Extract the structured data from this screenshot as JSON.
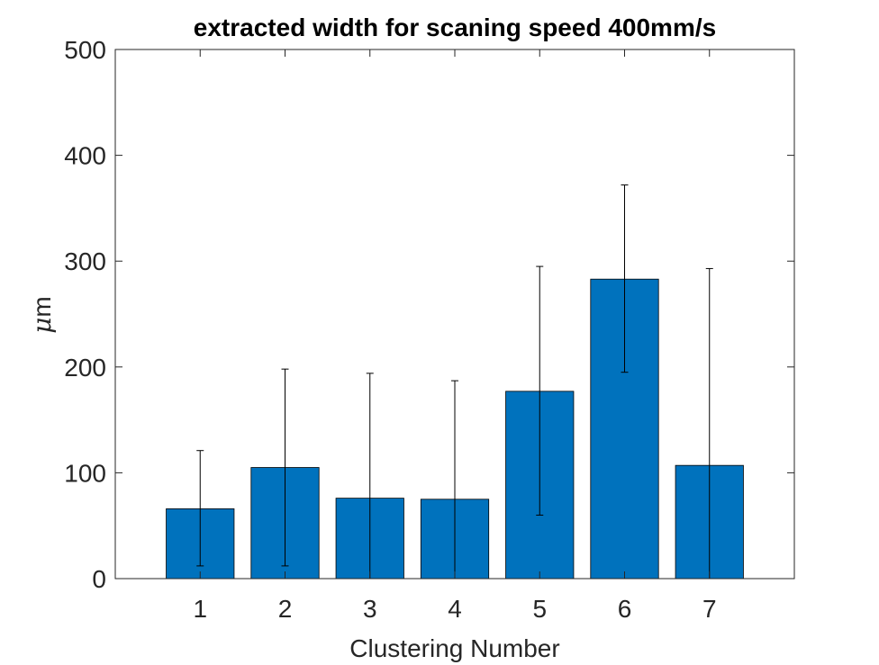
{
  "chart_data": {
    "type": "bar",
    "title": "extracted width for scaning speed 400mm/s",
    "xlabel": "Clustering Number",
    "ylabel": "μm",
    "ylabel_parts": {
      "greek": "μ",
      "unit": "m"
    },
    "categories": [
      "1",
      "2",
      "3",
      "4",
      "5",
      "6",
      "7"
    ],
    "x_tick_labels": [
      "1",
      "2",
      "3",
      "4",
      "5",
      "6",
      "7"
    ],
    "xlim": [
      0,
      8
    ],
    "ylim": [
      0,
      500
    ],
    "y_ticks": [
      0,
      100,
      200,
      300,
      400,
      500
    ],
    "y_tick_labels": [
      "0",
      "100",
      "200",
      "300",
      "400",
      "500"
    ],
    "values": [
      66,
      105,
      76,
      75,
      177,
      283,
      107
    ],
    "error_lower": [
      12,
      12,
      0,
      0,
      60,
      195,
      0
    ],
    "error_upper": [
      121,
      198,
      194,
      187,
      295,
      372,
      293
    ],
    "bar_color": "#0072BD",
    "error_bar_color": "#000000",
    "grid": false,
    "legend": "none"
  }
}
